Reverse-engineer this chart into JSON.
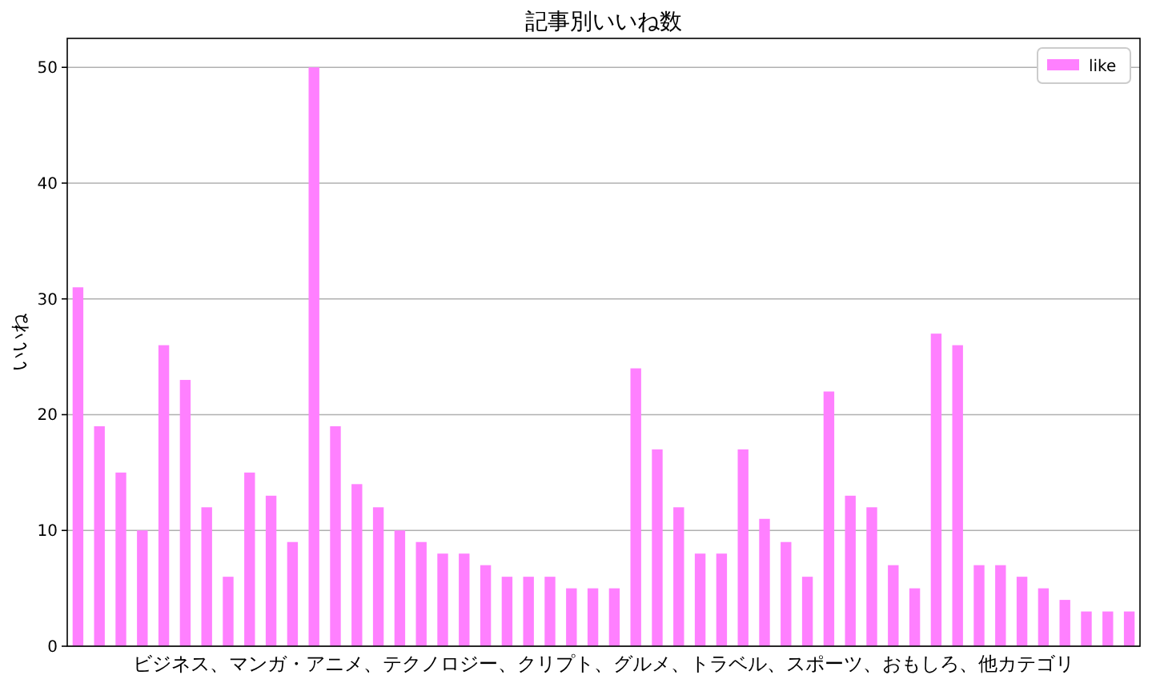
{
  "chart_data": {
    "type": "bar",
    "title": "記事別いいね数",
    "xlabel": "ビジネス、マンガ・アニメ、テクノロジー、クリプト、グルメ、トラベル、スポーツ、おもしろ、他カテゴリ",
    "ylabel": "いいね",
    "categories": [
      null,
      null,
      null,
      null,
      null,
      null,
      null,
      null,
      null,
      null,
      null,
      null,
      null,
      null,
      null,
      null,
      null,
      null,
      null,
      null,
      null,
      null,
      null,
      null,
      null,
      null,
      null,
      null,
      null,
      null,
      null,
      null,
      null,
      null,
      null,
      null,
      null,
      null,
      null,
      null,
      null,
      null,
      null,
      null,
      null,
      null,
      null,
      null,
      null,
      null
    ],
    "series": [
      {
        "name": "like",
        "color": "#ff80ff",
        "values": [
          31,
          19,
          15,
          10,
          26,
          23,
          12,
          6,
          15,
          13,
          9,
          50,
          19,
          14,
          12,
          10,
          9,
          8,
          8,
          7,
          6,
          6,
          6,
          5,
          5,
          5,
          24,
          17,
          12,
          8,
          8,
          17,
          11,
          9,
          6,
          22,
          13,
          12,
          7,
          5,
          27,
          26,
          7,
          7,
          6,
          5,
          4,
          3,
          3,
          3
        ]
      }
    ],
    "ylim": [
      0,
      52.5
    ],
    "yticks": [
      0,
      10,
      20,
      30,
      40,
      50
    ],
    "grid": "y",
    "legend": "top right"
  }
}
